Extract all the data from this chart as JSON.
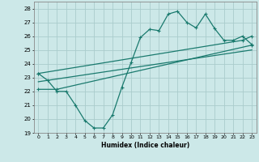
{
  "xlabel": "Humidex (Indice chaleur)",
  "bg_color": "#cce8e8",
  "grid_color": "#aacccc",
  "line_color": "#1a7a6e",
  "xlim": [
    -0.5,
    23.5
  ],
  "ylim": [
    19,
    28.5
  ],
  "yticks": [
    19,
    20,
    21,
    22,
    23,
    24,
    25,
    26,
    27,
    28
  ],
  "xticks": [
    0,
    1,
    2,
    3,
    4,
    5,
    6,
    7,
    8,
    9,
    10,
    11,
    12,
    13,
    14,
    15,
    16,
    17,
    18,
    19,
    20,
    21,
    22,
    23
  ],
  "main_line_x": [
    0,
    1,
    2,
    3,
    4,
    5,
    6,
    7,
    8,
    9,
    10,
    11,
    12,
    13,
    14,
    15,
    16,
    17,
    18,
    19,
    20,
    21,
    22,
    23
  ],
  "main_line_y": [
    23.3,
    22.8,
    22.0,
    22.0,
    21.0,
    19.9,
    19.35,
    19.35,
    20.3,
    22.3,
    24.1,
    25.9,
    26.5,
    26.4,
    27.6,
    27.8,
    27.0,
    26.6,
    27.6,
    26.55,
    25.7,
    25.7,
    26.0,
    25.4
  ],
  "upper_line_x": [
    0,
    22,
    23
  ],
  "upper_line_y": [
    23.3,
    25.7,
    26.0
  ],
  "lower_line_x": [
    0,
    2,
    23
  ],
  "lower_line_y": [
    22.15,
    22.15,
    25.35
  ],
  "middle_line_x": [
    0,
    23
  ],
  "middle_line_y": [
    22.7,
    25.0
  ]
}
